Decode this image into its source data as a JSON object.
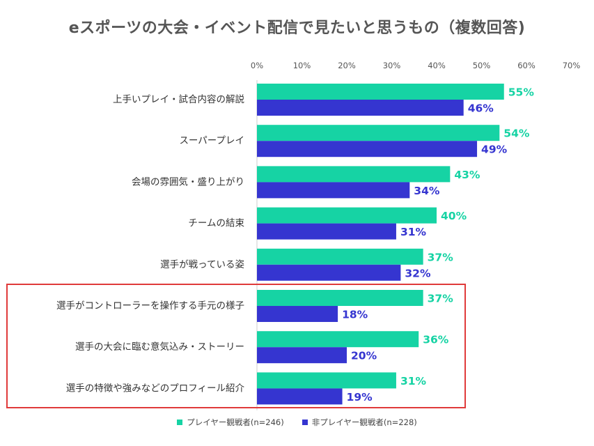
{
  "title": "eスポーツの大会・イベント配信で見たいと思うもの（複数回答)",
  "colors": {
    "player": "#16d3a4",
    "non_player": "#3535d0",
    "highlight": "#e03a3a",
    "grid": "#dddddd",
    "label": "#333333"
  },
  "chart_data": {
    "type": "bar",
    "orientation": "horizontal",
    "xlim": [
      0,
      70
    ],
    "ticks": [
      "0%",
      "10%",
      "20%",
      "30%",
      "40%",
      "50%",
      "60%",
      "70%"
    ],
    "tick_values": [
      0,
      10,
      20,
      30,
      40,
      50,
      60,
      70
    ],
    "categories": [
      "上手いプレイ・試合内容の解説",
      "スーパープレイ",
      "会場の雰囲気・盛り上がり",
      "チームの結束",
      "選手が戦っている姿",
      "選手がコントローラーを操作する手元の様子",
      "選手の大会に臨む意気込み・ストーリー",
      "選手の特徴や強みなどのプロフィール紹介"
    ],
    "series": [
      {
        "name": "プレイヤー観戦者(n=246)",
        "values": [
          55,
          54,
          43,
          40,
          37,
          37,
          36,
          31
        ],
        "labels": [
          "55%",
          "54%",
          "43%",
          "40%",
          "37%",
          "37%",
          "36%",
          "31%"
        ]
      },
      {
        "name": "非プレイヤー観戦者(n=228)",
        "values": [
          46,
          49,
          34,
          31,
          32,
          18,
          20,
          19
        ],
        "labels": [
          "46%",
          "49%",
          "34%",
          "31%",
          "32%",
          "18%",
          "20%",
          "19%"
        ]
      }
    ],
    "highlighted_categories": [
      5,
      6,
      7
    ],
    "legend_position": "bottom"
  }
}
